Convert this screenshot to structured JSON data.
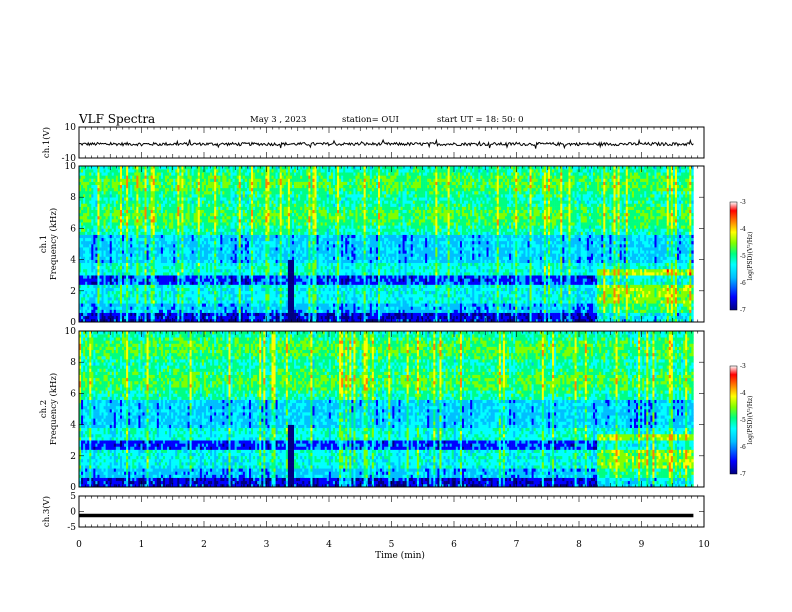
{
  "header": {
    "title": "VLF Spectra",
    "date": "May 3 , 2023",
    "station": "station= OUI",
    "start": "start UT = 18: 50: 0"
  },
  "colors": {
    "colormap": [
      "#000080",
      "#0000ff",
      "#00bfff",
      "#00ffff",
      "#00ff80",
      "#80ff00",
      "#ffff00",
      "#ff8000",
      "#ff0000",
      "#ffffff"
    ]
  },
  "chart_data": [
    {
      "type": "line",
      "id": "ch1-waveform",
      "ylabel": "ch.1(V)",
      "ylim": [
        -10,
        10
      ],
      "yticks": [
        "10",
        "-10"
      ],
      "xlim": [
        0,
        10
      ],
      "baseline_v": -1,
      "amplitude_v": 1
    },
    {
      "type": "heatmap",
      "id": "ch1-spectrogram",
      "ylabel": "ch.1\nFrequency (kHz)",
      "ylim": [
        0,
        10
      ],
      "yticks": [
        "0",
        "2",
        "4",
        "6",
        "8",
        "10"
      ],
      "xlim": [
        0,
        10
      ],
      "data_end_min": 9.83,
      "colorbar": {
        "label": "log(PSD)(V²/Hz)",
        "range": [
          -7,
          -3
        ],
        "ticks": [
          "-3",
          "-4",
          "-5",
          "-6",
          "-7"
        ]
      }
    },
    {
      "type": "heatmap",
      "id": "ch2-spectrogram",
      "ylabel": "ch.2\nFrequency (kHz)",
      "ylim": [
        0,
        10
      ],
      "yticks": [
        "0",
        "2",
        "4",
        "6",
        "8",
        "10"
      ],
      "xlim": [
        0,
        10
      ],
      "data_end_min": 9.83,
      "colorbar": {
        "label": "log(PSD)(V²/Hz)",
        "range": [
          -7,
          -3
        ],
        "ticks": [
          "-3",
          "-4",
          "-5",
          "-6",
          "-7"
        ]
      }
    },
    {
      "type": "line",
      "id": "ch3-waveform",
      "ylabel": "ch.3(V)",
      "ylim": [
        -5,
        5
      ],
      "yticks": [
        "5",
        "0",
        "-5"
      ],
      "xlim": [
        0,
        10
      ],
      "baseline_v": -1.3
    }
  ],
  "xaxis": {
    "label": "Time (min)",
    "ticks": [
      "0",
      "1",
      "2",
      "3",
      "4",
      "5",
      "6",
      "7",
      "8",
      "9",
      "10"
    ]
  }
}
